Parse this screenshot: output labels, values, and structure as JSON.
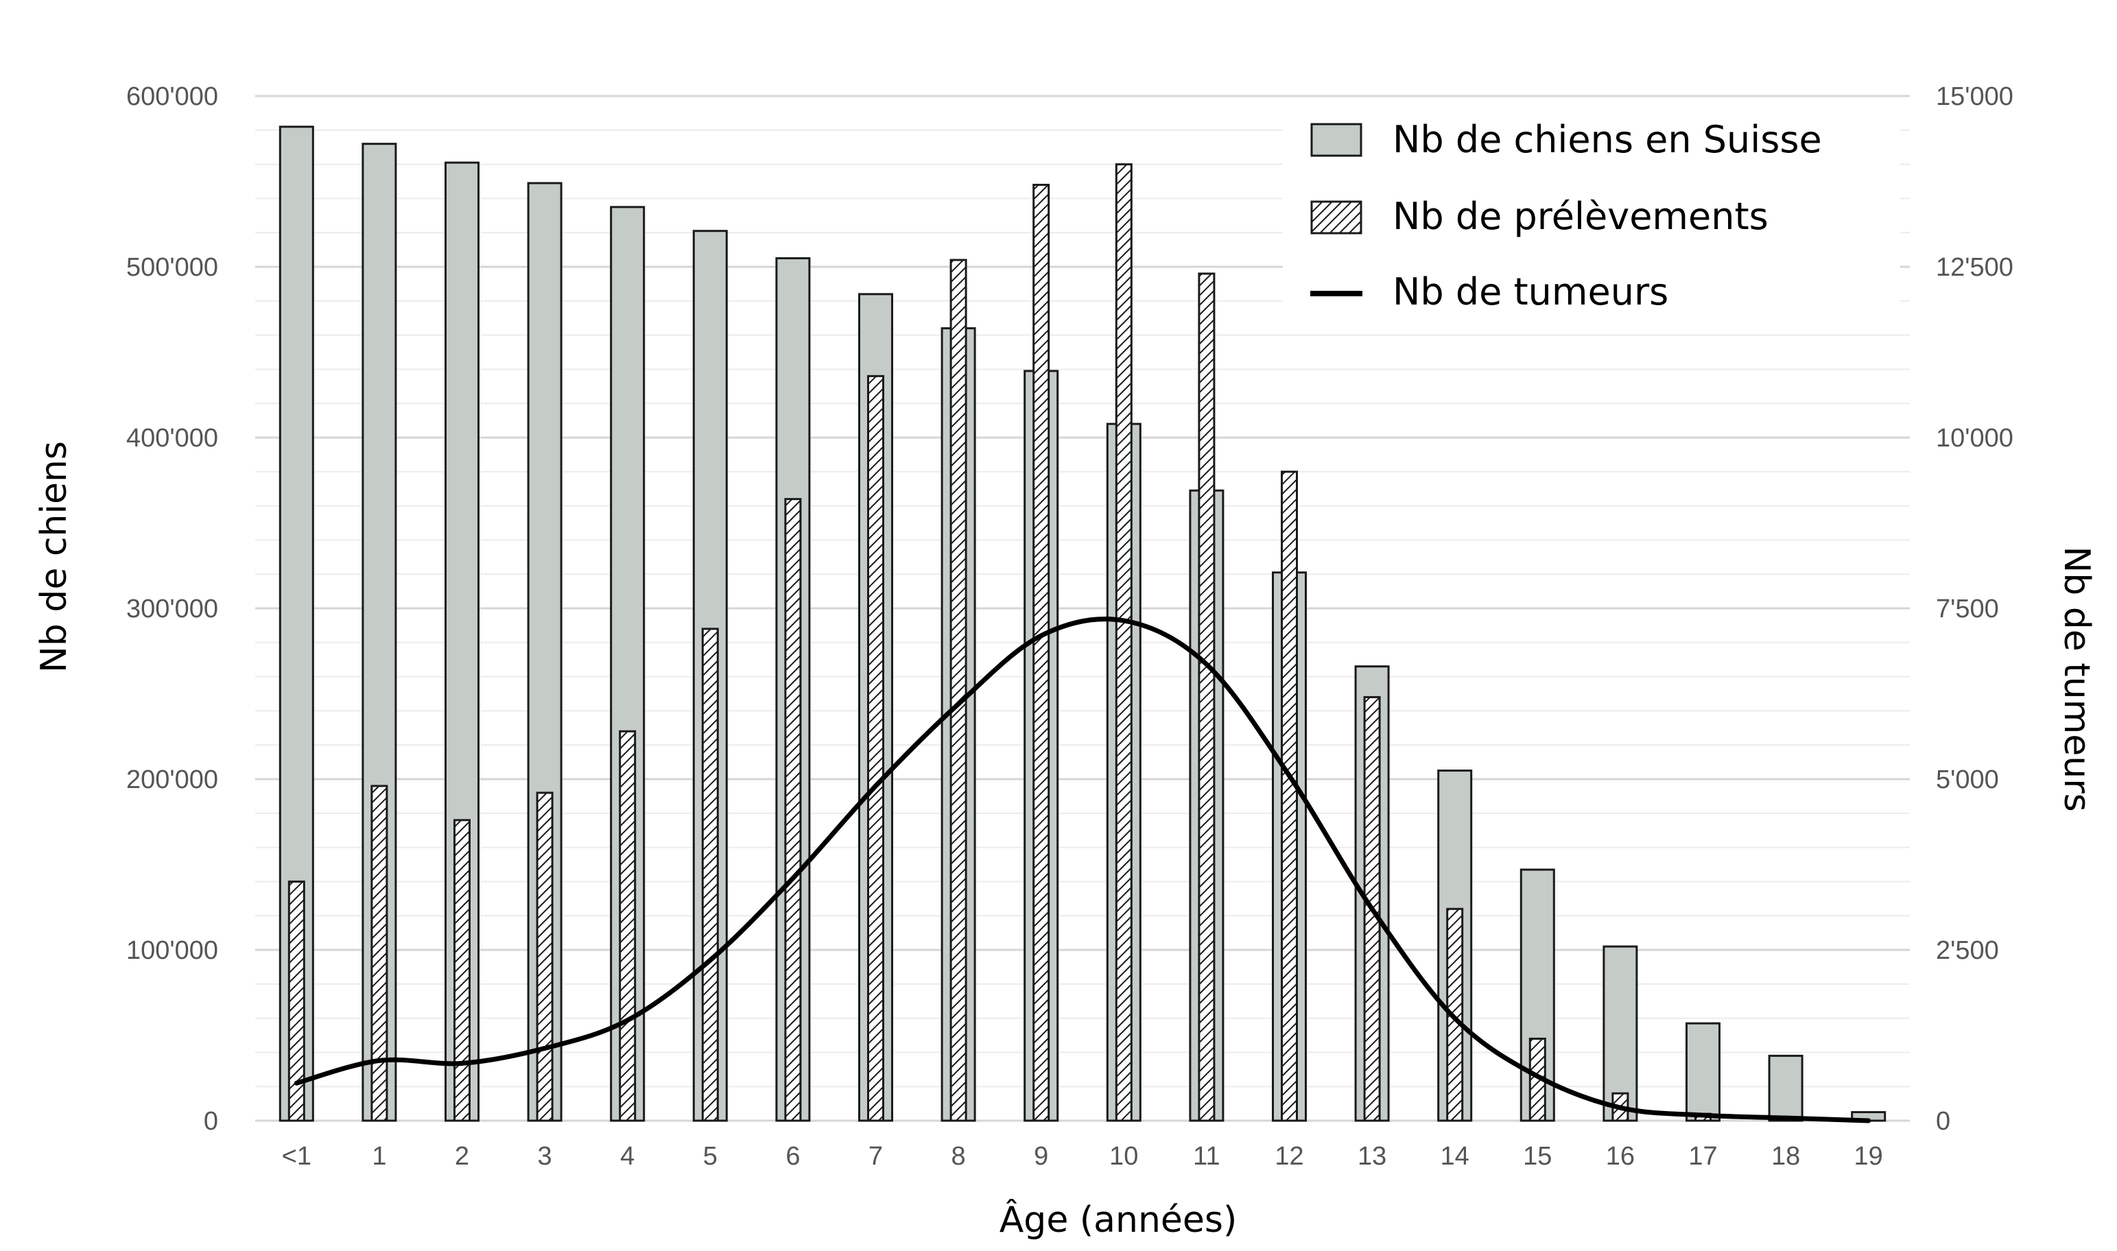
{
  "chart_data": {
    "type": "bar",
    "categories": [
      "<1",
      "1",
      "2",
      "3",
      "4",
      "5",
      "6",
      "7",
      "8",
      "9",
      "10",
      "11",
      "12",
      "13",
      "14",
      "15",
      "16",
      "17",
      "18",
      "19"
    ],
    "series": [
      {
        "name": "Nb de chiens en Suisse",
        "kind": "bar",
        "style": "solid",
        "axis": "left",
        "values": [
          582000,
          572000,
          561000,
          549000,
          535000,
          521000,
          505000,
          484000,
          464000,
          439000,
          408000,
          369000,
          321000,
          266000,
          205000,
          147000,
          102000,
          57000,
          38000,
          5000
        ]
      },
      {
        "name": "Nb de prélèvements",
        "kind": "bar",
        "style": "hatched",
        "axis": "right",
        "values": [
          3500,
          4900,
          4400,
          4800,
          5700,
          7200,
          9100,
          10900,
          12600,
          13700,
          14000,
          12400,
          9500,
          6200,
          3100,
          1200,
          400,
          100,
          0,
          0
        ]
      },
      {
        "name": "Nb de tumeurs",
        "kind": "line",
        "axis": "right",
        "values": [
          550,
          880,
          840,
          1060,
          1470,
          2350,
          3550,
          4900,
          6100,
          7100,
          7320,
          6680,
          5050,
          3100,
          1500,
          650,
          190,
          80,
          40,
          0
        ]
      }
    ],
    "xlabel": "Âge (années)",
    "ylabel": "Nb de chiens",
    "y2label": "Nb de tumeurs",
    "ylim": [
      0,
      600000
    ],
    "y2lim": [
      0,
      15000
    ],
    "yticks": [
      "0",
      "100'000",
      "200'000",
      "300'000",
      "400'000",
      "500'000",
      "600'000"
    ],
    "y2ticks": [
      "0",
      "2'500",
      "5'000",
      "7'500",
      "10'000",
      "12'500",
      "15'000"
    ],
    "grid": true,
    "legend_position": "top-right",
    "colors": {
      "bar_fill": "#c5ccc7",
      "bar_stroke": "#1a1a1a",
      "hatch": "#1a1a1a",
      "line": "#000000",
      "grid": "#dddddd",
      "tick_text": "#555555"
    }
  }
}
